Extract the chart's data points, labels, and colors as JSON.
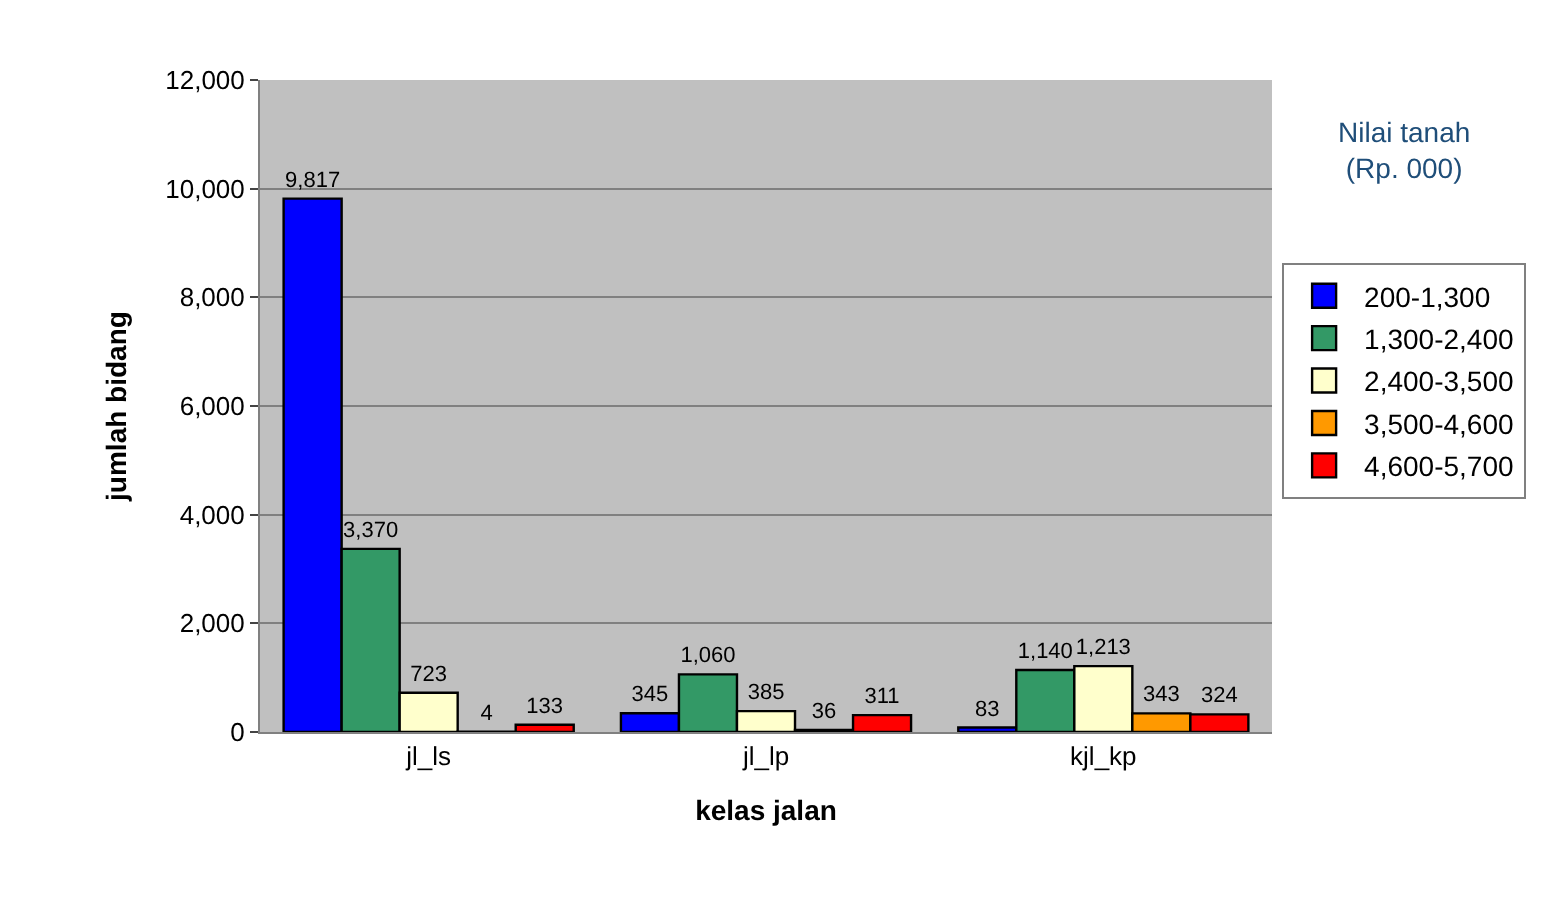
{
  "chart_data": {
    "type": "bar",
    "xlabel": "kelas jalan",
    "ylabel": "jumlah bidang",
    "legend_title": "Nilai tanah\n(Rp. 000)",
    "categories": [
      "jl_ls",
      "jl_lp",
      "kjl_kp"
    ],
    "series": [
      {
        "name": "200-1,300",
        "color": "#0000ff",
        "values": [
          9817,
          345,
          83
        ],
        "value_labels": [
          "9,817",
          "345",
          "83"
        ]
      },
      {
        "name": "1,300-2,400",
        "color": "#339966",
        "values": [
          3370,
          1060,
          1140
        ],
        "value_labels": [
          "3,370",
          "1,060",
          "1,140"
        ]
      },
      {
        "name": "2,400-3,500",
        "color": "#ffffcc",
        "values": [
          723,
          385,
          1213
        ],
        "value_labels": [
          "723",
          "385",
          "1,213"
        ]
      },
      {
        "name": "3,500-4,600",
        "color": "#ff9900",
        "values": [
          4,
          36,
          343
        ],
        "value_labels": [
          "4",
          "36",
          "343"
        ]
      },
      {
        "name": "4,600-5,700",
        "color": "#ff0000",
        "values": [
          133,
          311,
          324
        ],
        "value_labels": [
          "133",
          "311",
          "324"
        ]
      }
    ],
    "ylim": [
      0,
      12000
    ],
    "yticks": [
      {
        "value": 0,
        "label": "0"
      },
      {
        "value": 2000,
        "label": "2,000"
      },
      {
        "value": 4000,
        "label": "4,000"
      },
      {
        "value": 6000,
        "label": "6,000"
      },
      {
        "value": 8000,
        "label": "8,000"
      },
      {
        "value": 10000,
        "label": "10,000"
      },
      {
        "value": 12000,
        "label": "12,000"
      }
    ],
    "grid": "y",
    "legend": "right"
  }
}
